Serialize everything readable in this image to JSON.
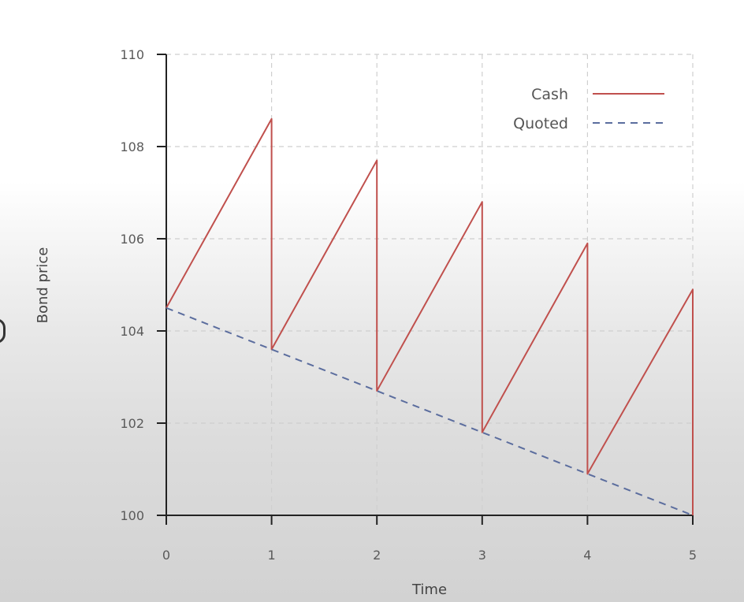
{
  "chart_data": {
    "type": "line",
    "xlabel": "Time",
    "ylabel": "Bond price",
    "xlim": [
      0,
      5
    ],
    "ylim": [
      100,
      110
    ],
    "xticks": [
      0,
      1,
      2,
      3,
      4,
      5
    ],
    "yticks": [
      100,
      102,
      104,
      106,
      108,
      110
    ],
    "grid": true,
    "legend_position": "top-right",
    "series": [
      {
        "name": "Cash",
        "style": "solid",
        "color": "#c0504d",
        "x": [
          0,
          1,
          1,
          2,
          2,
          3,
          3,
          4,
          4,
          5,
          5
        ],
        "y": [
          104.5,
          108.6,
          103.6,
          107.7,
          102.7,
          106.8,
          101.8,
          105.9,
          100.9,
          104.9,
          100.0
        ]
      },
      {
        "name": "Quoted",
        "style": "dashed",
        "color": "#5b6d9e",
        "x": [
          0,
          1,
          2,
          3,
          4,
          5
        ],
        "y": [
          104.5,
          103.6,
          102.7,
          101.8,
          100.9,
          100.0
        ]
      }
    ]
  }
}
